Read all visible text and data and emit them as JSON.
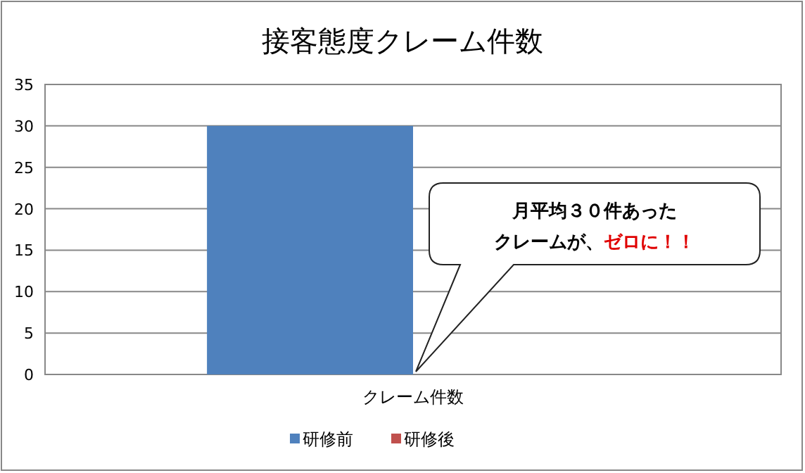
{
  "chart_data": {
    "type": "bar",
    "title": "接客態度クレーム件数",
    "categories": [
      "クレーム件数"
    ],
    "series": [
      {
        "name": "研修前",
        "color": "#4f81bd",
        "values": [
          30
        ]
      },
      {
        "name": "研修後",
        "color": "#c0504d",
        "values": [
          0
        ]
      }
    ],
    "ylim": [
      0,
      35
    ],
    "yticks": [
      0,
      5,
      10,
      15,
      20,
      25,
      30,
      35
    ],
    "grid": "y",
    "legend": "bottom",
    "annotations": [
      "月平均３０件あった",
      "クレームが、",
      "ゼロに！！"
    ]
  }
}
